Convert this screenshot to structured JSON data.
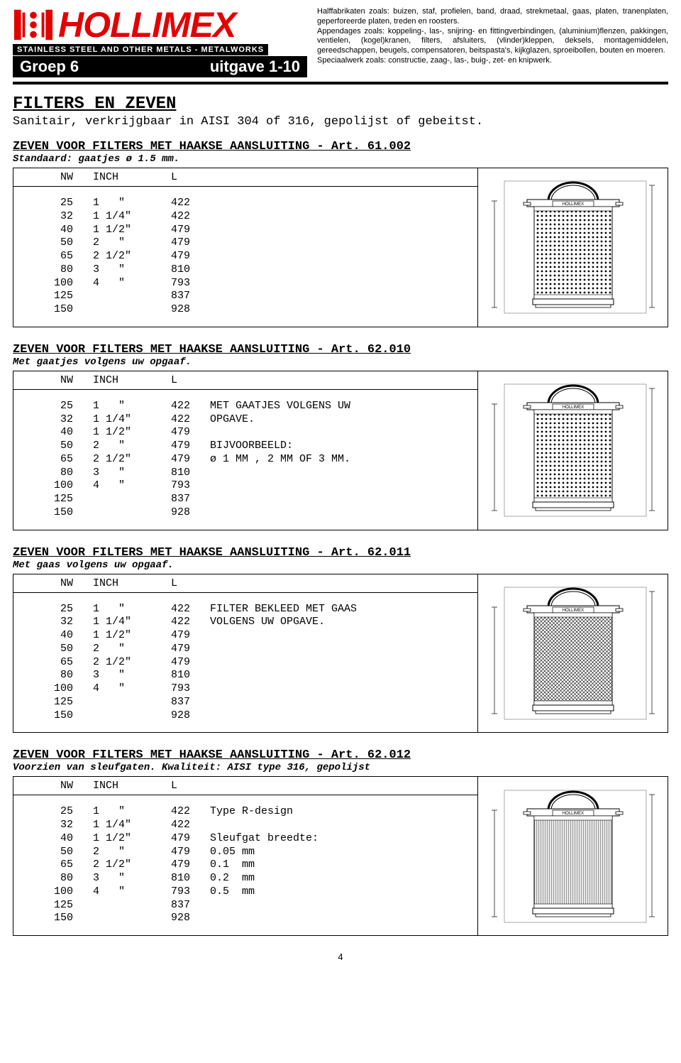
{
  "colors": {
    "red": "#e30000",
    "black": "#000000",
    "grey": "#e9e9e9"
  },
  "logo": {
    "name": "HOLLIMEX",
    "sub": "STAINLESS STEEL AND OTHER METALS - METALWORKS",
    "group": "Groep 6",
    "issue": "uitgave 1-10"
  },
  "desc": {
    "line1": "Halffabrikaten zoals: buizen, staf,  profielen, band, draad, strekmetaal, gaas, platen, tranenplaten, geperforeerde platen, treden en roosters.",
    "line2": "Appendages zoals: koppeling-, las-, snijring- en fittingverbindingen, (aluminium)flenzen, pakkingen,  ventielen, (kogel)kranen, filters, afsluiters, (vlinder)kleppen, deksels, montagemiddelen, gereedschappen, beugels, compensatoren, beitspasta's, kijkglazen, sproeibollen, bouten en moeren.",
    "line3": "Speciaalwerk zoals: constructie, zaag-, las-,  buig-, zet-  en knipwerk."
  },
  "page_title": "FILTERS EN ZEVEN",
  "page_sub": "Sanitair, verkrijgbaar in AISI 304 of 316, gepolijst of gebeitst.",
  "columns": {
    "nw": "NW",
    "inch": "INCH",
    "l": "L"
  },
  "rows": [
    {
      "nw": "25",
      "inch": "1   \"",
      "l": "422"
    },
    {
      "nw": "32",
      "inch": "1 1/4\"",
      "l": "422"
    },
    {
      "nw": "40",
      "inch": "1 1/2\"",
      "l": "479"
    },
    {
      "nw": "50",
      "inch": "2   \"",
      "l": "479"
    },
    {
      "nw": "65",
      "inch": "2 1/2\"",
      "l": "479"
    },
    {
      "nw": "80",
      "inch": "3   \"",
      "l": "810"
    },
    {
      "nw": "100",
      "inch": "4   \"",
      "l": "793"
    },
    {
      "nw": "125",
      "inch": "",
      "l": "837"
    },
    {
      "nw": "150",
      "inch": "",
      "l": "928"
    }
  ],
  "sections": [
    {
      "title": "ZEVEN VOOR FILTERS MET HAAKSE AANSLUITING - Art. 61.002",
      "sub": "Standaard: gaatjes ø 1.5 mm.",
      "notes": [],
      "pattern": "dots"
    },
    {
      "title": "ZEVEN VOOR FILTERS MET HAAKSE AANSLUITING - Art. 62.010",
      "sub": "Met gaatjes volgens uw opgaaf.",
      "notes": [
        "MET GAATJES VOLGENS UW",
        "OPGAVE.",
        "",
        "BIJVOORBEELD:",
        "ø 1 MM , 2 MM OF 3 MM."
      ],
      "pattern": "dots"
    },
    {
      "title": "ZEVEN VOOR FILTERS MET HAAKSE AANSLUITING - Art. 62.011",
      "sub": "Met gaas volgens uw opgaaf.",
      "notes": [
        "FILTER BEKLEED MET GAAS",
        "VOLGENS UW OPGAVE."
      ],
      "pattern": "mesh"
    },
    {
      "title": "ZEVEN VOOR FILTERS MET HAAKSE AANSLUITING - Art. 62.012",
      "sub": "Voorzien van sleufgaten. Kwaliteit: AISI type 316, gepolijst",
      "notes": [
        "Type R-design",
        "",
        "Sleufgat breedte:",
        "0.05 mm",
        "0.1  mm",
        "0.2  mm",
        "0.5  mm"
      ],
      "pattern": "lines"
    }
  ],
  "pagenum": "4",
  "diagram_label": "HOLLIMEX"
}
